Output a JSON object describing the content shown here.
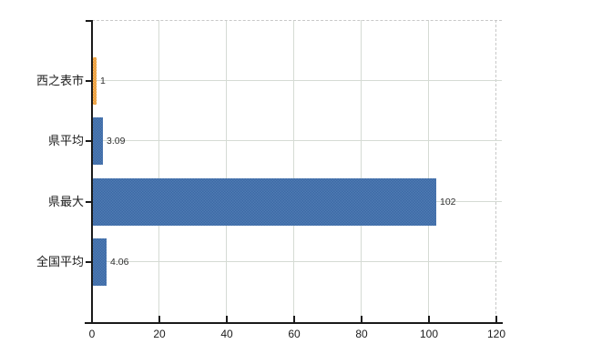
{
  "chart_data": {
    "type": "bar",
    "orientation": "horizontal",
    "title": "",
    "xlabel": "",
    "ylabel": "",
    "categories": [
      "西之表市",
      "県平均",
      "県最大",
      "全国平均"
    ],
    "values": [
      1,
      3.09,
      102,
      4.06
    ],
    "value_labels": [
      "1",
      "3.09",
      "102",
      "4.06"
    ],
    "bar_styles": [
      "highlight",
      "default",
      "default",
      "default"
    ],
    "x_ticks": [
      0,
      20,
      40,
      60,
      80,
      100,
      120
    ],
    "xlim": [
      0,
      120
    ],
    "grid": true,
    "legend": "none",
    "colors": {
      "default_bar": "#3c69a5",
      "default_bar_alt": "#4f7cb3",
      "highlight_bar": "#e8912d",
      "highlight_bar_alt": "#f6bd69",
      "gridline": "#d5dbd4",
      "dashed_border": "#c8c8c8",
      "axis": "#1a1a1a",
      "text": "#1c1c1c",
      "background": "#ffffff"
    }
  }
}
